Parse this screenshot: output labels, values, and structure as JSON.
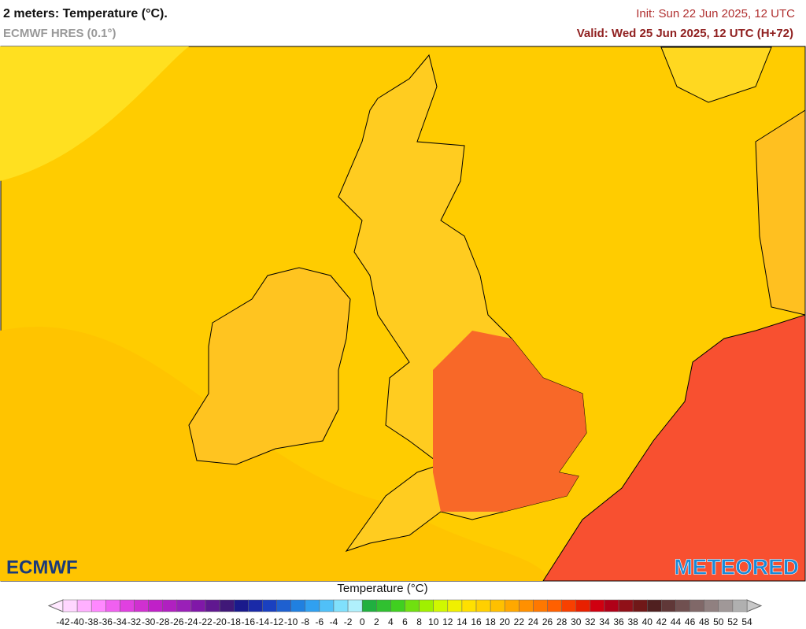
{
  "header": {
    "title": "2 meters: Temperature (°C).",
    "subtitle": "ECMWF HRES (0.1°)",
    "init": "Init: Sun 22 Jun 2025, 12 UTC",
    "valid": "Valid: Wed 25 Jun 2025, 12 UTC (H+72)"
  },
  "logos": {
    "left": "ECMWF",
    "right": "METEORED"
  },
  "legend": {
    "title": "Temperature (°C)",
    "ticks": [
      -42,
      -40,
      -38,
      -36,
      -34,
      -32,
      -30,
      -28,
      -26,
      -24,
      -22,
      -20,
      -18,
      -16,
      -14,
      -12,
      -10,
      -8,
      -6,
      -4,
      -2,
      0,
      2,
      4,
      6,
      8,
      10,
      12,
      14,
      16,
      18,
      20,
      22,
      24,
      26,
      28,
      30,
      32,
      34,
      36,
      38,
      40,
      42,
      44,
      46,
      48,
      50,
      52,
      54
    ],
    "colors": [
      "#ffd6ff",
      "#ffb0ff",
      "#ff88ff",
      "#f060f0",
      "#e040e0",
      "#d030d0",
      "#c020c8",
      "#b020c0",
      "#9a20b8",
      "#8018a8",
      "#601890",
      "#401878",
      "#1a1a8c",
      "#1a2aa8",
      "#1a40c0",
      "#1e60d0",
      "#2080e0",
      "#30a0f0",
      "#50c0f8",
      "#80e0fc",
      "#b0f0fc",
      "#20b040",
      "#30c030",
      "#40d020",
      "#70e010",
      "#a0f000",
      "#d0f800",
      "#f0f000",
      "#ffe000",
      "#ffd000",
      "#ffc000",
      "#ffa800",
      "#ff9000",
      "#ff7800",
      "#ff6000",
      "#f84000",
      "#e82000",
      "#d00010",
      "#b00018",
      "#901018",
      "#701818",
      "#502020",
      "#603838",
      "#705050",
      "#806868",
      "#908080",
      "#a09898",
      "#b0b0b0"
    ],
    "low_color": "#ffe8ff",
    "high_color": "#c8c8c8"
  }
}
